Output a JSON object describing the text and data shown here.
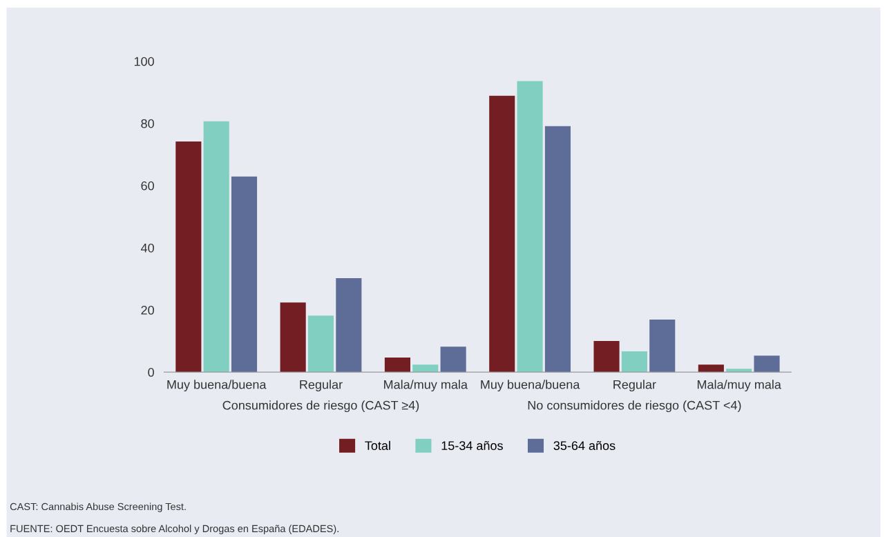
{
  "chart_data": {
    "type": "bar",
    "categories": [
      "Muy buena/buena",
      "Regular",
      "Mala/muy mala",
      "Muy buena/buena",
      "Regular",
      "Mala/muy mala"
    ],
    "series": [
      {
        "name": "Total",
        "color": "#731e22",
        "values": [
          74.2,
          22.4,
          4.7,
          88.9,
          10.0,
          2.4
        ]
      },
      {
        "name": "15-34 años",
        "color": "#80cfc0",
        "values": [
          80.7,
          18.2,
          2.4,
          93.6,
          6.7,
          1.1
        ]
      },
      {
        "name": "35-64 años",
        "color": "#5e6d98",
        "values": [
          62.9,
          30.2,
          8.2,
          79.1,
          16.9,
          5.3
        ]
      }
    ],
    "ylim": [
      0,
      100
    ],
    "yticks": [
      0,
      20,
      40,
      60,
      80,
      100
    ],
    "grid": false,
    "legend": "bottom",
    "annotations": [
      "Consumidores de riesgo (CAST ≥4)",
      "No consumidores de riesgo (CAST <4)",
      "CAST: Cannabis Abuse Screening Test.",
      "FUENTE: OEDT Encuesta sobre Alcohol y Drogas en España (EDADES)."
    ]
  }
}
